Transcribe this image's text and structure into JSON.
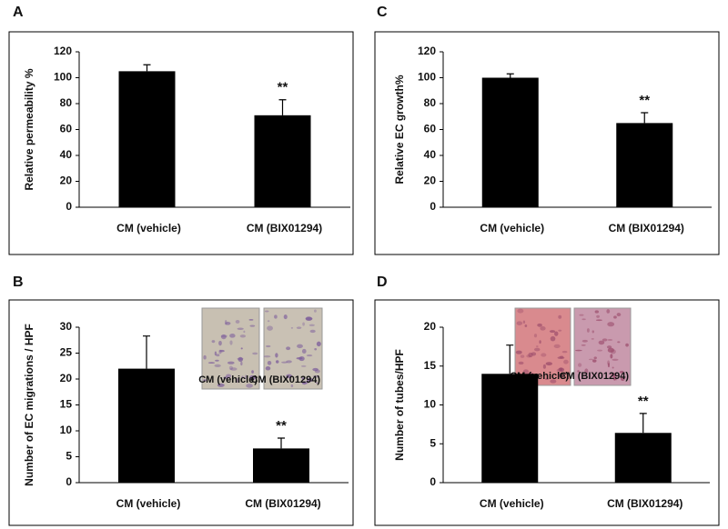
{
  "chart_data": [
    {
      "type": "bar",
      "panel_label": "A",
      "ylabel": "Relative permeability %",
      "categories": [
        "CM (vehicle)",
        "CM (BIX01294)"
      ],
      "values": [
        105,
        71
      ],
      "errors": [
        5,
        12
      ],
      "value_annotations": [
        null,
        "**"
      ],
      "color": "#000000",
      "ylim": [
        0,
        120
      ],
      "yticks": [
        0,
        20,
        40,
        60,
        80,
        100,
        120
      ]
    },
    {
      "type": "bar",
      "panel_label": "C",
      "ylabel": "Relative EC growth%",
      "categories": [
        "CM (vehicle)",
        "CM (BIX01294)"
      ],
      "values": [
        100,
        65
      ],
      "errors": [
        3,
        8
      ],
      "value_annotations": [
        null,
        "**"
      ],
      "color": "#000000",
      "ylim": [
        0,
        120
      ],
      "yticks": [
        0,
        20,
        40,
        60,
        80,
        100,
        120
      ]
    },
    {
      "type": "bar",
      "panel_label": "B",
      "ylabel": "Number of EC migrations / HPF",
      "categories": [
        "CM (vehicle)",
        "CM (BIX01294)"
      ],
      "values": [
        22,
        6.6
      ],
      "errors": [
        6.3,
        2
      ],
      "value_annotations": [
        null,
        "**"
      ],
      "color": "#000000",
      "ylim": [
        0,
        30
      ],
      "yticks": [
        0,
        5,
        10,
        15,
        20,
        25,
        30
      ],
      "inset_labels": [
        "CM (vehicle)",
        "CM (BIX01294)"
      ]
    },
    {
      "type": "bar",
      "panel_label": "D",
      "ylabel": "Number of tubes/HPF",
      "categories": [
        "CM (vehicle)",
        "CM (BIX01294)"
      ],
      "values": [
        14,
        6.4
      ],
      "errors": [
        3.7,
        2.5
      ],
      "value_annotations": [
        null,
        "**"
      ],
      "color": "#000000",
      "ylim": [
        0,
        20
      ],
      "yticks": [
        0,
        5,
        10,
        15,
        20
      ],
      "inset_labels": [
        "CM (vehicle)",
        "CM (BIX01294)"
      ]
    }
  ]
}
